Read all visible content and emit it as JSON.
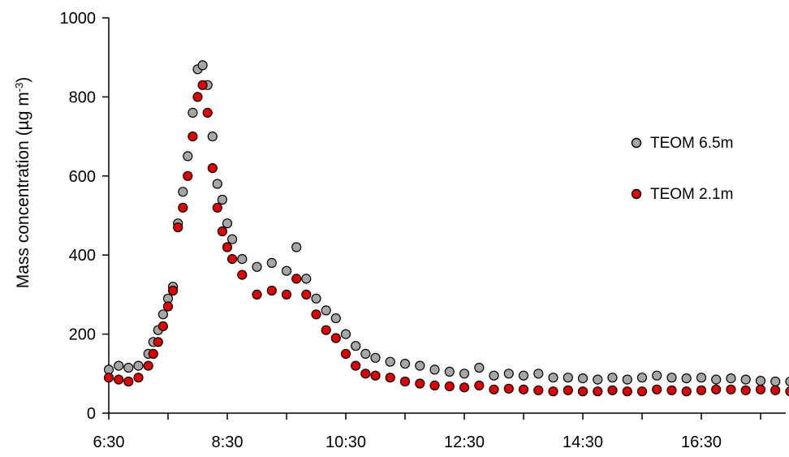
{
  "chart_data": {
    "type": "scatter",
    "ylabel_main": "Mass concentration (µg m",
    "ylabel_sup": "-3",
    "ylabel_end": ")",
    "ylim": [
      0,
      1000
    ],
    "yticks": [
      0,
      200,
      400,
      600,
      800,
      1000
    ],
    "xlim": [
      "6:30",
      "18:00"
    ],
    "xticks": [
      "6:30",
      "8:30",
      "10:30",
      "12:30",
      "14:30",
      "16:30"
    ],
    "grid": false,
    "legend_position": "right",
    "series": [
      {
        "name": "TEOM 6.5m",
        "color": "#a6a6a6",
        "points": [
          [
            "6:30",
            110
          ],
          [
            "6:40",
            120
          ],
          [
            "6:50",
            115
          ],
          [
            "7:00",
            120
          ],
          [
            "7:10",
            150
          ],
          [
            "7:15",
            180
          ],
          [
            "7:20",
            210
          ],
          [
            "7:25",
            250
          ],
          [
            "7:30",
            290
          ],
          [
            "7:35",
            320
          ],
          [
            "7:40",
            480
          ],
          [
            "7:45",
            560
          ],
          [
            "7:50",
            650
          ],
          [
            "7:55",
            760
          ],
          [
            "8:00",
            870
          ],
          [
            "8:05",
            880
          ],
          [
            "8:10",
            830
          ],
          [
            "8:15",
            700
          ],
          [
            "8:20",
            580
          ],
          [
            "8:25",
            540
          ],
          [
            "8:30",
            480
          ],
          [
            "8:35",
            440
          ],
          [
            "8:45",
            390
          ],
          [
            "9:00",
            370
          ],
          [
            "9:15",
            380
          ],
          [
            "9:30",
            360
          ],
          [
            "9:40",
            420
          ],
          [
            "9:50",
            340
          ],
          [
            "10:00",
            290
          ],
          [
            "10:10",
            260
          ],
          [
            "10:20",
            240
          ],
          [
            "10:30",
            200
          ],
          [
            "10:40",
            170
          ],
          [
            "10:50",
            150
          ],
          [
            "11:00",
            140
          ],
          [
            "11:15",
            130
          ],
          [
            "11:30",
            125
          ],
          [
            "11:45",
            120
          ],
          [
            "12:00",
            110
          ],
          [
            "12:15",
            105
          ],
          [
            "12:30",
            100
          ],
          [
            "12:45",
            115
          ],
          [
            "13:00",
            95
          ],
          [
            "13:15",
            100
          ],
          [
            "13:30",
            95
          ],
          [
            "13:45",
            100
          ],
          [
            "14:00",
            90
          ],
          [
            "14:15",
            90
          ],
          [
            "14:30",
            88
          ],
          [
            "14:45",
            85
          ],
          [
            "15:00",
            90
          ],
          [
            "15:15",
            85
          ],
          [
            "15:30",
            90
          ],
          [
            "15:45",
            95
          ],
          [
            "16:00",
            90
          ],
          [
            "16:15",
            88
          ],
          [
            "16:30",
            90
          ],
          [
            "16:45",
            85
          ],
          [
            "17:00",
            88
          ],
          [
            "17:15",
            85
          ],
          [
            "17:30",
            82
          ],
          [
            "17:45",
            80
          ],
          [
            "18:00",
            80
          ]
        ]
      },
      {
        "name": "TEOM 2.1m",
        "color": "#e00000",
        "points": [
          [
            "6:30",
            90
          ],
          [
            "6:40",
            85
          ],
          [
            "6:50",
            80
          ],
          [
            "7:00",
            90
          ],
          [
            "7:10",
            120
          ],
          [
            "7:15",
            150
          ],
          [
            "7:20",
            180
          ],
          [
            "7:25",
            220
          ],
          [
            "7:30",
            270
          ],
          [
            "7:35",
            310
          ],
          [
            "7:40",
            470
          ],
          [
            "7:45",
            520
          ],
          [
            "7:50",
            600
          ],
          [
            "7:55",
            700
          ],
          [
            "8:00",
            800
          ],
          [
            "8:05",
            830
          ],
          [
            "8:10",
            760
          ],
          [
            "8:15",
            620
          ],
          [
            "8:20",
            520
          ],
          [
            "8:25",
            460
          ],
          [
            "8:30",
            420
          ],
          [
            "8:35",
            390
          ],
          [
            "8:45",
            350
          ],
          [
            "9:00",
            300
          ],
          [
            "9:15",
            310
          ],
          [
            "9:30",
            300
          ],
          [
            "9:40",
            340
          ],
          [
            "9:50",
            300
          ],
          [
            "10:00",
            250
          ],
          [
            "10:10",
            210
          ],
          [
            "10:20",
            190
          ],
          [
            "10:30",
            150
          ],
          [
            "10:40",
            120
          ],
          [
            "10:50",
            100
          ],
          [
            "11:00",
            95
          ],
          [
            "11:15",
            90
          ],
          [
            "11:30",
            80
          ],
          [
            "11:45",
            75
          ],
          [
            "12:00",
            70
          ],
          [
            "12:15",
            68
          ],
          [
            "12:30",
            65
          ],
          [
            "12:45",
            70
          ],
          [
            "13:00",
            60
          ],
          [
            "13:15",
            62
          ],
          [
            "13:30",
            60
          ],
          [
            "13:45",
            58
          ],
          [
            "14:00",
            55
          ],
          [
            "14:15",
            58
          ],
          [
            "14:30",
            55
          ],
          [
            "14:45",
            55
          ],
          [
            "15:00",
            58
          ],
          [
            "15:15",
            55
          ],
          [
            "15:30",
            55
          ],
          [
            "15:45",
            60
          ],
          [
            "16:00",
            58
          ],
          [
            "16:15",
            55
          ],
          [
            "16:30",
            58
          ],
          [
            "16:45",
            60
          ],
          [
            "17:00",
            60
          ],
          [
            "17:15",
            58
          ],
          [
            "17:30",
            60
          ],
          [
            "17:45",
            58
          ],
          [
            "18:00",
            55
          ]
        ]
      }
    ]
  }
}
